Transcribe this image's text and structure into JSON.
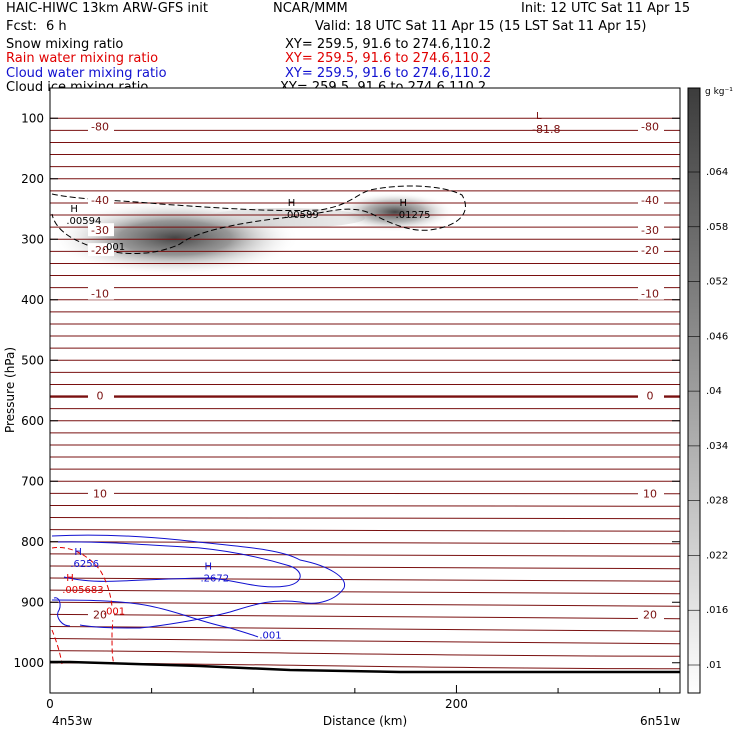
{
  "header": {
    "model": "HAIC-HIWC 13km ARW-GFS init",
    "org": "NCAR/MMM",
    "init": "Init: 12 UTC Sat 11 Apr 15",
    "fcst_label": "Fcst:",
    "fcst_value": "6 h",
    "valid": "Valid: 18 UTC Sat 11 Apr 15 (15 LST Sat 11 Apr 15)"
  },
  "fields": [
    {
      "name": "Snow mixing ratio",
      "xy": "XY= 259.5, 91.6 to 274.6,110.2",
      "color": "#000000"
    },
    {
      "name": "Rain water mixing ratio",
      "xy": "XY= 259.5, 91.6 to 274.6,110.2",
      "color": "#e00000"
    },
    {
      "name": "Cloud water mixing ratio",
      "xy": "XY= 259.5, 91.6 to 274.6,110.2",
      "color": "#1010d0"
    },
    {
      "name": "Cloud ice mixing ratio",
      "xy": "XY= 259.5, 91.6 to 274.6,110.2",
      "color": "#000000"
    }
  ],
  "colors": {
    "temperature": "#7a1010",
    "rain": "#e00000",
    "cloud_water": "#1010d0",
    "ice": "#000000"
  },
  "chart_data": {
    "type": "contour-cross-section",
    "xlabel": "Distance (km)",
    "ylabel": "Pressure (hPa)",
    "x_ticks": [
      0,
      200
    ],
    "y_ticks": [
      100,
      200,
      300,
      400,
      500,
      600,
      700,
      800,
      900,
      1000
    ],
    "ylim": [
      1050,
      50
    ],
    "xlim": [
      0,
      310
    ],
    "x_start_label": "4n53w",
    "x_end_label": "6n51w",
    "colorbar": {
      "units": "g kg⁻¹",
      "ticks": [
        ".01",
        ".016",
        ".022",
        ".028",
        ".034",
        ".04",
        ".046",
        ".052",
        ".058",
        ".064"
      ]
    },
    "temperature_contours": [
      {
        "label": "-80",
        "p": 114
      },
      {
        "label": "-81.8",
        "p": 108,
        "extreme": "L"
      },
      {
        "label": "-40",
        "p": 235
      },
      {
        "label": "-30",
        "p": 285
      },
      {
        "label": "-20",
        "p": 318
      },
      {
        "label": "-10",
        "p": 390
      },
      {
        "label": "0",
        "p": 558
      },
      {
        "label": "10",
        "p": 720
      },
      {
        "label": "20",
        "p": 920
      }
    ],
    "maxima": [
      {
        "field": "snow",
        "label": ".00594",
        "x": 10,
        "p": 275
      },
      {
        "field": "snow",
        "label": ".00589",
        "x": 117,
        "p": 265
      },
      {
        "field": "snow",
        "label": ".01275",
        "x": 172,
        "p": 265
      },
      {
        "field": "snow",
        "label": ".001",
        "x": 28,
        "p": 318
      },
      {
        "field": "cloud_water",
        "label": ".6256",
        "x": 12,
        "p": 842
      },
      {
        "field": "cloud_water",
        "label": ".2672",
        "x": 76,
        "p": 866
      },
      {
        "field": "cloud_water",
        "label": ".001",
        "x": 105,
        "p": 960
      },
      {
        "field": "rain",
        "label": ".005683",
        "x": 8,
        "p": 885
      },
      {
        "field": "rain",
        "label": ".001",
        "x": 28,
        "p": 920
      }
    ],
    "extrema_markers": {
      "high": "H",
      "low": "L"
    }
  }
}
